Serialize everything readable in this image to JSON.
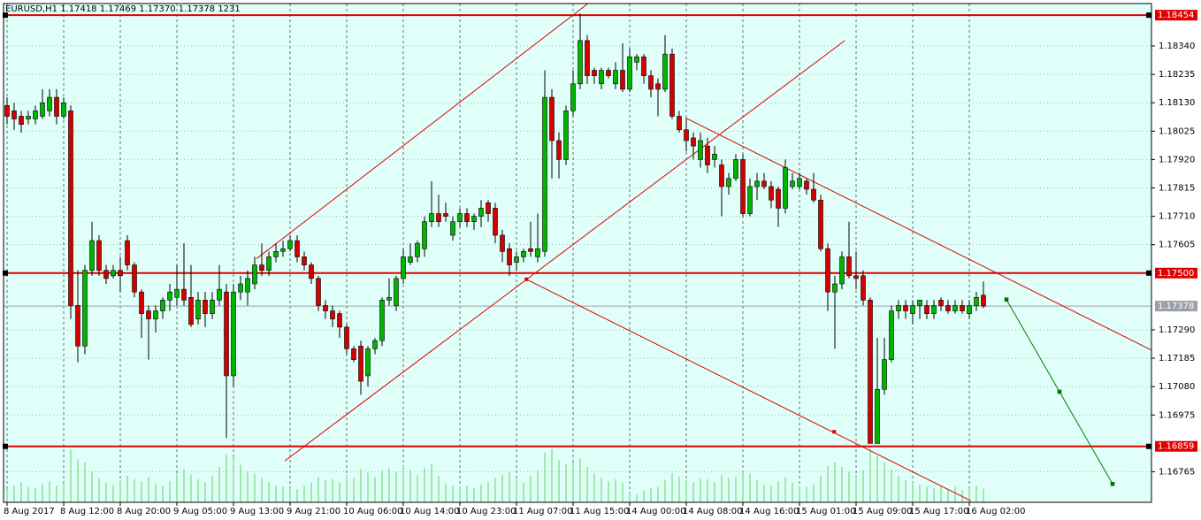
{
  "chart_data": {
    "type": "candlestick",
    "title": "EURUSD,H1  1.17418 1.17469 1.17370 1.17378  1231",
    "up_color": "#00b400",
    "down_color": "#d40000",
    "wick_color": "#000000",
    "volume_color": "#5fd35f",
    "level_color": "#e00000",
    "trend_color": "#e00000",
    "projection_color": "#008000",
    "price_line_color": "#9aa0a6",
    "background": "#e0fff9",
    "grid": true,
    "xlim": [
      -0.5,
      161.75
    ],
    "ylim": [
      1.16652,
      1.18497
    ],
    "xticks": [
      {
        "value": 0,
        "label": "8 Aug 2017"
      },
      {
        "value": 8,
        "label": "8 Aug 12:00"
      },
      {
        "value": 16,
        "label": "8 Aug 20:00"
      },
      {
        "value": 24,
        "label": "9 Aug 05:00"
      },
      {
        "value": 32,
        "label": "9 Aug 13:00"
      },
      {
        "value": 40,
        "label": "9 Aug 21:00"
      },
      {
        "value": 48,
        "label": "10 Aug 06:00"
      },
      {
        "value": 56,
        "label": "10 Aug 14:00"
      },
      {
        "value": 64,
        "label": "10 Aug 23:00"
      },
      {
        "value": 72,
        "label": "11 Aug 07:00"
      },
      {
        "value": 80,
        "label": "11 Aug 15:00"
      },
      {
        "value": 88,
        "label": "14 Aug 00:00"
      },
      {
        "value": 96,
        "label": "14 Aug 08:00"
      },
      {
        "value": 104,
        "label": "14 Aug 16:00"
      },
      {
        "value": 112,
        "label": "15 Aug 01:00"
      },
      {
        "value": 120,
        "label": "15 Aug 09:00"
      },
      {
        "value": 128,
        "label": "15 Aug 17:00"
      },
      {
        "value": 136,
        "label": "16 Aug 02:00"
      }
    ],
    "yticks": [
      {
        "value": 1.1834,
        "label": "1.18340"
      },
      {
        "value": 1.18235,
        "label": "1.18235"
      },
      {
        "value": 1.1813,
        "label": "1.18130"
      },
      {
        "value": 1.18025,
        "label": "1.18025"
      },
      {
        "value": 1.1792,
        "label": "1.17920"
      },
      {
        "value": 1.17815,
        "label": "1.17815"
      },
      {
        "value": 1.1771,
        "label": "1.17710"
      },
      {
        "value": 1.17605,
        "label": "1.17605"
      },
      {
        "value": 1.1729,
        "label": "1.17290"
      },
      {
        "value": 1.17185,
        "label": "1.17185"
      },
      {
        "value": 1.1708,
        "label": "1.17080"
      },
      {
        "value": 1.16975,
        "label": "1.16975"
      },
      {
        "value": 1.16765,
        "label": "1.16765"
      }
    ],
    "levels": [
      {
        "value": 1.18454,
        "label": "1.18454"
      },
      {
        "value": 1.175,
        "label": "1.17500"
      },
      {
        "value": 1.16859,
        "label": "1.16859"
      }
    ],
    "price_line": {
      "value": 1.17378,
      "label": "1.17378"
    },
    "trendlines": [
      {
        "x1": 35.25,
        "y1": 1.17553,
        "x2": 82.1,
        "y2": 1.18497
      },
      {
        "x1": 39.25,
        "y1": 1.16805,
        "x2": 118.4,
        "y2": 1.1836
      },
      {
        "x1": 73.4,
        "y1": 1.17477,
        "x2": 136.25,
        "y2": 1.16657
      },
      {
        "x1": 95.9,
        "y1": 1.18074,
        "x2": 161.75,
        "y2": 1.17215
      }
    ],
    "anchor_points": {
      "x": [
        73.4,
        116.9
      ],
      "y": [
        1.17477,
        1.16913
      ]
    },
    "projection": {
      "x": [
        141.25,
        148.75,
        156.25
      ],
      "y": [
        1.17402,
        1.17061,
        1.1672
      ]
    },
    "open": [
      1.1812,
      1.181,
      1.1808,
      1.1807,
      1.1807,
      1.1808,
      1.181,
      1.1815,
      1.1808,
      1.181,
      1.1738,
      1.1723,
      1.1751,
      1.1762,
      1.1751,
      1.1749,
      1.1751,
      1.1762,
      1.1753,
      1.1743,
      1.1736,
      1.1733,
      1.1736,
      1.174,
      1.1741,
      1.1744,
      1.1741,
      1.1733,
      1.174,
      1.1735,
      1.174,
      1.1743,
      1.1712,
      1.1743,
      1.1743,
      1.1746,
      1.1753,
      1.1751,
      1.1756,
      1.1758,
      1.1759,
      1.1762,
      1.1756,
      1.1753,
      1.1748,
      1.1738,
      1.1736,
      1.1735,
      1.173,
      1.1722,
      1.1723,
      1.1712,
      1.1722,
      1.1725,
      1.174,
      1.1738,
      1.1748,
      1.1754,
      1.1756,
      1.1759,
      1.1769,
      1.1772,
      1.1772,
      1.1764,
      1.1769,
      1.1772,
      1.1769,
      1.1771,
      1.1776,
      1.1774,
      1.1764,
      1.1759,
      1.1754,
      1.1756,
      1.1759,
      1.1756,
      1.1758,
      1.1815,
      1.1799,
      1.1792,
      1.181,
      1.182,
      1.1836,
      1.1825,
      1.182,
      1.1825,
      1.182,
      1.1825,
      1.1818,
      1.1828,
      1.183,
      1.1823,
      1.182,
      1.1818,
      1.1831,
      1.1808,
      1.1803,
      1.18,
      1.1792,
      1.1797,
      1.1792,
      1.179,
      1.1782,
      1.1785,
      1.1792,
      1.1772,
      1.1782,
      1.1784,
      1.1782,
      1.1781,
      1.1774,
      1.1782,
      1.1782,
      1.1784,
      1.1781,
      1.1777,
      1.1759,
      1.1743,
      1.1746,
      1.1756,
      1.1749,
      1.1749,
      1.174,
      1.1687,
      1.1707,
      1.1718,
      1.1736,
      1.1738,
      1.1735,
      1.1738,
      1.1738,
      1.1735,
      1.174,
      1.1738,
      1.1736,
      1.1738,
      1.1735,
      1.1738,
      1.17418
    ],
    "high": [
      1.1815,
      1.1813,
      1.181,
      1.181,
      1.1812,
      1.1818,
      1.1818,
      1.1818,
      1.1815,
      1.1812,
      1.1751,
      1.1753,
      1.1769,
      1.1764,
      1.1753,
      1.1753,
      1.1756,
      1.1764,
      1.1754,
      1.1744,
      1.1738,
      1.1738,
      1.1741,
      1.1746,
      1.1753,
      1.1761,
      1.1753,
      1.1743,
      1.1743,
      1.1743,
      1.1753,
      1.1746,
      1.1746,
      1.1749,
      1.1751,
      1.1756,
      1.1761,
      1.1758,
      1.1761,
      1.1762,
      1.1764,
      1.1764,
      1.1758,
      1.1754,
      1.1749,
      1.174,
      1.1738,
      1.1736,
      1.1731,
      1.1723,
      1.1725,
      1.1723,
      1.1726,
      1.1741,
      1.1748,
      1.1749,
      1.1759,
      1.1761,
      1.1762,
      1.1771,
      1.1784,
      1.1779,
      1.1776,
      1.1771,
      1.1774,
      1.1774,
      1.1772,
      1.1777,
      1.1777,
      1.1776,
      1.1766,
      1.1761,
      1.1758,
      1.1759,
      1.1769,
      1.1772,
      1.1825,
      1.1818,
      1.1802,
      1.1812,
      1.1825,
      1.1846,
      1.1838,
      1.1826,
      1.1826,
      1.1826,
      1.1828,
      1.1835,
      1.1833,
      1.1831,
      1.1831,
      1.1825,
      1.1822,
      1.1838,
      1.1833,
      1.181,
      1.1807,
      1.1802,
      1.1802,
      1.18,
      1.1797,
      1.1792,
      1.1787,
      1.1794,
      1.1794,
      1.1785,
      1.1787,
      1.1787,
      1.1784,
      1.1782,
      1.1792,
      1.1787,
      1.1787,
      1.1785,
      1.1787,
      1.1779,
      1.1761,
      1.1749,
      1.1758,
      1.1769,
      1.1758,
      1.1751,
      1.1741,
      1.1726,
      1.1726,
      1.1738,
      1.174,
      1.174,
      1.174,
      1.174,
      1.174,
      1.174,
      1.1741,
      1.174,
      1.174,
      1.174,
      1.174,
      1.1743,
      1.17469
    ],
    "low": [
      1.1805,
      1.1803,
      1.1802,
      1.1805,
      1.1805,
      1.1807,
      1.1808,
      1.1805,
      1.1807,
      1.1733,
      1.1717,
      1.172,
      1.1749,
      1.1749,
      1.1746,
      1.1748,
      1.1743,
      1.1751,
      1.1741,
      1.1726,
      1.1718,
      1.1728,
      1.1733,
      1.1736,
      1.1738,
      1.1738,
      1.173,
      1.1731,
      1.173,
      1.1733,
      1.1738,
      1.1689,
      1.1708,
      1.174,
      1.1738,
      1.1744,
      1.1749,
      1.1749,
      1.1754,
      1.1756,
      1.1758,
      1.1754,
      1.1751,
      1.1746,
      1.1736,
      1.1733,
      1.173,
      1.1726,
      1.172,
      1.1717,
      1.1705,
      1.1708,
      1.172,
      1.1723,
      1.1738,
      1.1736,
      1.1746,
      1.1753,
      1.1754,
      1.1756,
      1.1767,
      1.1767,
      1.1769,
      1.1762,
      1.1767,
      1.1767,
      1.1766,
      1.1767,
      1.1769,
      1.1761,
      1.1754,
      1.1749,
      1.1751,
      1.1754,
      1.1756,
      1.1754,
      1.1756,
      1.1785,
      1.1785,
      1.179,
      1.1808,
      1.1818,
      1.182,
      1.182,
      1.1818,
      1.1822,
      1.1818,
      1.1817,
      1.1817,
      1.1825,
      1.182,
      1.1815,
      1.1808,
      1.1817,
      1.1807,
      1.1802,
      1.1795,
      1.1792,
      1.1789,
      1.1787,
      1.1789,
      1.1771,
      1.1779,
      1.1784,
      1.1771,
      1.1771,
      1.1777,
      1.1781,
      1.1774,
      1.1767,
      1.1772,
      1.1781,
      1.1781,
      1.1779,
      1.1776,
      1.1758,
      1.1736,
      1.1722,
      1.1744,
      1.1748,
      1.1744,
      1.1738,
      1.1687,
      1.1687,
      1.1705,
      1.1717,
      1.1733,
      1.1733,
      1.1731,
      1.1733,
      1.1733,
      1.1733,
      1.1736,
      1.1735,
      1.1735,
      1.1735,
      1.1733,
      1.1736,
      1.1737
    ],
    "close": [
      1.1808,
      1.1807,
      1.1805,
      1.1808,
      1.181,
      1.1813,
      1.1815,
      1.1808,
      1.1813,
      1.1738,
      1.1723,
      1.1751,
      1.1762,
      1.1751,
      1.1748,
      1.1751,
      1.1749,
      1.1753,
      1.1743,
      1.1735,
      1.1733,
      1.1736,
      1.174,
      1.1743,
      1.1744,
      1.174,
      1.1731,
      1.174,
      1.1735,
      1.174,
      1.1744,
      1.1712,
      1.1743,
      1.1746,
      1.1748,
      1.1753,
      1.1751,
      1.1756,
      1.1758,
      1.1759,
      1.1762,
      1.1756,
      1.1753,
      1.1748,
      1.1738,
      1.1736,
      1.1733,
      1.173,
      1.1722,
      1.1718,
      1.171,
      1.1722,
      1.1725,
      1.174,
      1.1741,
      1.1748,
      1.1756,
      1.1756,
      1.1761,
      1.1769,
      1.1772,
      1.1769,
      1.1771,
      1.1769,
      1.1772,
      1.1769,
      1.1771,
      1.1774,
      1.1772,
      1.1764,
      1.1758,
      1.1753,
      1.1756,
      1.1758,
      1.1758,
      1.1759,
      1.1815,
      1.1799,
      1.1792,
      1.181,
      1.182,
      1.1836,
      1.1823,
      1.1823,
      1.1825,
      1.1823,
      1.1825,
      1.1818,
      1.183,
      1.183,
      1.1823,
      1.1818,
      1.1818,
      1.1831,
      1.1808,
      1.1803,
      1.1799,
      1.1797,
      1.1799,
      1.179,
      1.1794,
      1.1782,
      1.1785,
      1.1792,
      1.1772,
      1.1782,
      1.1784,
      1.1782,
      1.1777,
      1.1774,
      1.1789,
      1.1784,
      1.1785,
      1.1781,
      1.1777,
      1.1759,
      1.1743,
      1.1746,
      1.1756,
      1.1749,
      1.1748,
      1.174,
      1.1687,
      1.1707,
      1.1718,
      1.1736,
      1.1738,
      1.1736,
      1.1738,
      1.174,
      1.1735,
      1.1738,
      1.1738,
      1.1736,
      1.1738,
      1.1736,
      1.1738,
      1.1741,
      1.17378
    ],
    "volume": [
      1200,
      1500,
      1800,
      1400,
      1300,
      1600,
      1900,
      1500,
      1700,
      4800,
      3900,
      3600,
      2800,
      2200,
      1800,
      1600,
      2000,
      2400,
      2100,
      1900,
      2300,
      1700,
      1500,
      1900,
      2600,
      3000,
      2500,
      2100,
      1800,
      2400,
      3200,
      4300,
      4100,
      3400,
      2800,
      2600,
      2200,
      1800,
      1500,
      1400,
      1300,
      1200,
      1500,
      1800,
      2300,
      2000,
      2100,
      1800,
      2500,
      2200,
      3000,
      2700,
      2300,
      2900,
      3100,
      2800,
      3300,
      2900,
      2500,
      3100,
      3500,
      2400,
      1700,
      1500,
      1400,
      1500,
      1300,
      1600,
      1800,
      2200,
      2500,
      2700,
      2100,
      1800,
      2400,
      2900,
      4500,
      4800,
      3800,
      3500,
      3600,
      4000,
      3200,
      2600,
      2200,
      1900,
      2100,
      1800,
      900,
      700,
      1100,
      1300,
      1400,
      2000,
      2600,
      2300,
      2000,
      1800,
      2200,
      2100,
      1800,
      2500,
      2200,
      2300,
      2800,
      2600,
      2000,
      1600,
      1500,
      1900,
      2300,
      1800,
      1500,
      1400,
      1600,
      2400,
      3300,
      3600,
      3200,
      2800,
      2500,
      2900,
      4800,
      4200,
      3600,
      3000,
      2400,
      2000,
      1800,
      1600,
      1400,
      1300,
      1500,
      1200,
      1400,
      1100,
      1300,
      1500,
      1231
    ]
  }
}
